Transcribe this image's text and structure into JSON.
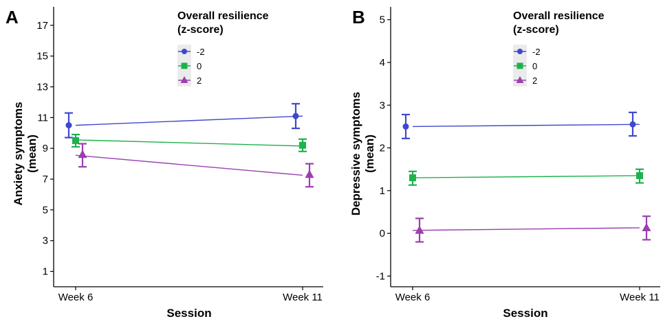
{
  "chart_data": [
    {
      "type": "line",
      "panel_label": "A",
      "xlabel": "Session",
      "ylabel_line1": "Anxiety symptoms",
      "ylabel_line2": "(mean)",
      "categories": [
        "Week 6",
        "Week 11"
      ],
      "ylim": [
        0,
        18.2
      ],
      "yticks": [
        1,
        3,
        5,
        7,
        9,
        11,
        13,
        15,
        17
      ],
      "legend": {
        "title_line1": "Overall resilience",
        "title_line2": "(z-score)",
        "position": "top-center"
      },
      "series": [
        {
          "name": "-2",
          "color": "#3F48CC",
          "marker": "circle",
          "values": [
            10.5,
            11.1
          ],
          "lower": [
            9.7,
            10.3
          ],
          "upper": [
            11.3,
            11.9
          ],
          "fit": [
            10.5,
            11.1
          ]
        },
        {
          "name": "0",
          "color": "#1DB24B",
          "marker": "square",
          "values": [
            9.5,
            9.2
          ],
          "lower": [
            9.1,
            8.8
          ],
          "upper": [
            9.9,
            9.6
          ],
          "fit": [
            9.55,
            9.15
          ]
        },
        {
          "name": "2",
          "color": "#9B3FAF",
          "marker": "triangle",
          "values": [
            8.6,
            7.3
          ],
          "lower": [
            7.8,
            6.5
          ],
          "upper": [
            9.3,
            8.0
          ],
          "fit": [
            8.55,
            7.25
          ]
        }
      ],
      "grid": false
    },
    {
      "type": "line",
      "panel_label": "B",
      "xlabel": "Session",
      "ylabel_line1": "Depressive symptoms",
      "ylabel_line2": "(mean)",
      "categories": [
        "Week 6",
        "Week 11"
      ],
      "ylim": [
        -1.25,
        5.3
      ],
      "yticks": [
        -1,
        0,
        1,
        2,
        3,
        4,
        5
      ],
      "legend": {
        "title_line1": "Overall resilience",
        "title_line2": "(z-score)",
        "position": "top-center"
      },
      "series": [
        {
          "name": "-2",
          "color": "#3F48CC",
          "marker": "circle",
          "values": [
            2.5,
            2.55
          ],
          "lower": [
            2.22,
            2.28
          ],
          "upper": [
            2.78,
            2.83
          ],
          "fit": [
            2.5,
            2.55
          ]
        },
        {
          "name": "0",
          "color": "#1DB24B",
          "marker": "square",
          "values": [
            1.3,
            1.35
          ],
          "lower": [
            1.13,
            1.18
          ],
          "upper": [
            1.45,
            1.5
          ],
          "fit": [
            1.3,
            1.35
          ]
        },
        {
          "name": "2",
          "color": "#9B3FAF",
          "marker": "triangle",
          "values": [
            0.07,
            0.13
          ],
          "lower": [
            -0.2,
            -0.15
          ],
          "upper": [
            0.35,
            0.4
          ],
          "fit": [
            0.07,
            0.13
          ]
        }
      ],
      "grid": false
    }
  ]
}
